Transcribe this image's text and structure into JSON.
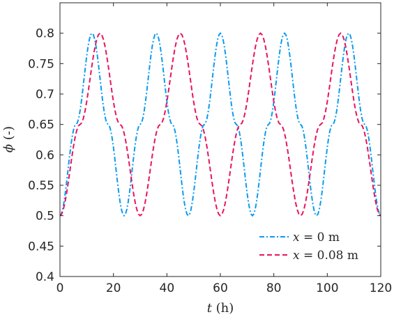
{
  "chart_data": {
    "type": "line",
    "xlabel": {
      "var": "t",
      "unit": "(h)"
    },
    "ylabel": {
      "var": "ϕ",
      "unit": "(-)"
    },
    "xlim": [
      0,
      120
    ],
    "ylim": [
      0.4,
      0.85
    ],
    "xticks": [
      "0",
      "20",
      "40",
      "60",
      "80",
      "100",
      "120"
    ],
    "yticks": [
      "0.4",
      "0.45",
      "0.5",
      "0.55",
      "0.6",
      "0.65",
      "0.7",
      "0.75",
      "0.8"
    ],
    "grid": false,
    "legend_position": "bottom-right",
    "series": [
      {
        "name": "x = 0 m",
        "legend": {
          "var": "x",
          "rest": "= 0 m"
        },
        "color": "#0a9bf2",
        "style": "dash-dot",
        "x": [
          0,
          6,
          12,
          18,
          24,
          30,
          36,
          42,
          48,
          54,
          60,
          66,
          72,
          78,
          84,
          90,
          96,
          102,
          108,
          114,
          120
        ],
        "y": [
          0.5,
          0.65,
          0.8,
          0.65,
          0.5,
          0.65,
          0.8,
          0.65,
          0.5,
          0.65,
          0.8,
          0.65,
          0.5,
          0.65,
          0.8,
          0.65,
          0.5,
          0.65,
          0.8,
          0.65,
          0.5
        ]
      },
      {
        "name": "x = 0.08 m",
        "legend": {
          "var": "x",
          "rest": "= 0.08 m"
        },
        "color": "#e8145f",
        "style": "dashed",
        "x": [
          0,
          7.5,
          15,
          22.5,
          30,
          37.5,
          45,
          52.5,
          60,
          67.5,
          75,
          82.5,
          90,
          97.5,
          105,
          112.5,
          120
        ],
        "y": [
          0.5,
          0.65,
          0.8,
          0.65,
          0.5,
          0.65,
          0.8,
          0.65,
          0.5,
          0.65,
          0.8,
          0.65,
          0.5,
          0.65,
          0.8,
          0.65,
          0.5
        ]
      }
    ]
  }
}
